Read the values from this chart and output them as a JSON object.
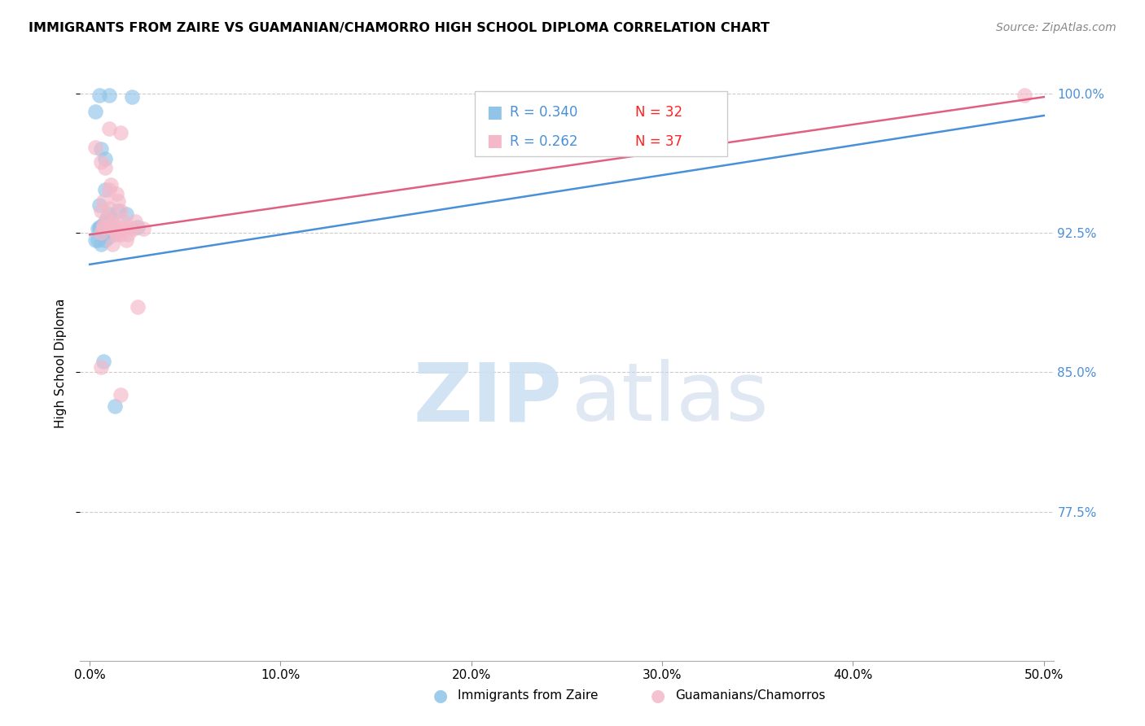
{
  "title": "IMMIGRANTS FROM ZAIRE VS GUAMANIAN/CHAMORRO HIGH SCHOOL DIPLOMA CORRELATION CHART",
  "source": "Source: ZipAtlas.com",
  "ylabel": "High School Diploma",
  "legend_blue_label": "Immigrants from Zaire",
  "legend_pink_label": "Guamanians/Chamorros",
  "y_min": 0.695,
  "y_max": 1.015,
  "x_min": -0.005,
  "x_max": 0.505,
  "yticks": [
    0.775,
    0.85,
    0.925,
    1.0
  ],
  "ytick_labels": [
    "77.5%",
    "85.0%",
    "92.5%",
    "100.0%"
  ],
  "xticks": [
    0.0,
    0.1,
    0.2,
    0.3,
    0.4,
    0.5
  ],
  "xtick_labels": [
    "0.0%",
    "10.0%",
    "20.0%",
    "30.0%",
    "40.0%",
    "50.0%"
  ],
  "blue_scatter_x": [
    0.005,
    0.01,
    0.022,
    0.008,
    0.003,
    0.006,
    0.005,
    0.01,
    0.008,
    0.004,
    0.007,
    0.015,
    0.009,
    0.006,
    0.011,
    0.019,
    0.005,
    0.007,
    0.004,
    0.01,
    0.012,
    0.006,
    0.009,
    0.003,
    0.005,
    0.007,
    0.006,
    0.013,
    0.008,
    0.025,
    0.013,
    0.007
  ],
  "blue_scatter_y": [
    0.999,
    0.999,
    0.998,
    0.965,
    0.99,
    0.97,
    0.94,
    0.935,
    0.948,
    0.927,
    0.93,
    0.937,
    0.925,
    0.927,
    0.932,
    0.935,
    0.927,
    0.928,
    0.921,
    0.923,
    0.926,
    0.928,
    0.933,
    0.921,
    0.928,
    0.927,
    0.919,
    0.925,
    0.921,
    0.928,
    0.832,
    0.856
  ],
  "pink_scatter_x": [
    0.003,
    0.01,
    0.016,
    0.006,
    0.008,
    0.011,
    0.01,
    0.014,
    0.015,
    0.007,
    0.01,
    0.006,
    0.016,
    0.009,
    0.017,
    0.021,
    0.024,
    0.014,
    0.007,
    0.02,
    0.011,
    0.016,
    0.012,
    0.017,
    0.007,
    0.028,
    0.012,
    0.006,
    0.016,
    0.019,
    0.023,
    0.012,
    0.014,
    0.006,
    0.025,
    0.016,
    0.49
  ],
  "pink_scatter_y": [
    0.971,
    0.981,
    0.979,
    0.963,
    0.96,
    0.951,
    0.948,
    0.946,
    0.942,
    0.942,
    0.938,
    0.937,
    0.937,
    0.933,
    0.932,
    0.928,
    0.931,
    0.924,
    0.928,
    0.924,
    0.928,
    0.924,
    0.931,
    0.927,
    0.929,
    0.927,
    0.93,
    0.925,
    0.928,
    0.921,
    0.927,
    0.919,
    0.925,
    0.853,
    0.885,
    0.838,
    0.999
  ],
  "blue_line_x": [
    0.0,
    0.5
  ],
  "blue_line_y": [
    0.908,
    0.988
  ],
  "pink_line_x": [
    0.0,
    0.5
  ],
  "pink_line_y": [
    0.924,
    0.998
  ],
  "blue_color": "#90c4e8",
  "pink_color": "#f4b8c8",
  "blue_line_color": "#4a90d9",
  "pink_line_color": "#e06080",
  "grid_color": "#cccccc",
  "right_axis_color": "#4a90d9",
  "background_color": "#ffffff"
}
